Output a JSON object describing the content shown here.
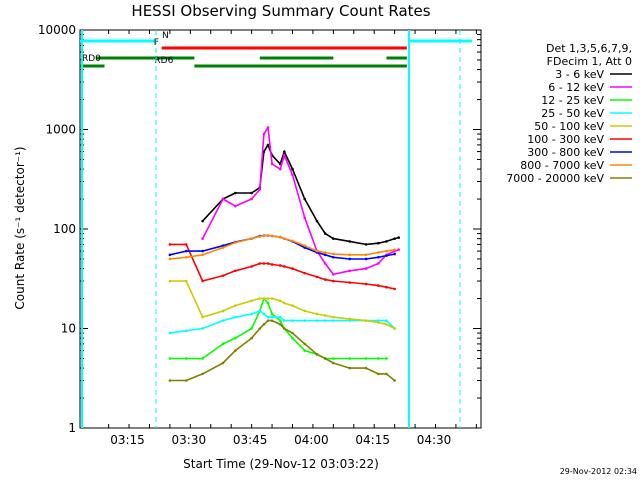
{
  "chart_data": {
    "type": "line",
    "title": "HESSI Observing Summary Count Rates",
    "xlabel": "Start Time (29-Nov-12 03:03:22)",
    "ylabel": "Count Rate (s⁻¹ detector⁻¹)",
    "y_scale": "log",
    "ylim": [
      1,
      10000
    ],
    "xlim": [
      "03:03:22",
      "04:41:30"
    ],
    "x_ticks": [
      "03:15",
      "03:30",
      "03:45",
      "04:00",
      "04:15",
      "04:30"
    ],
    "y_ticks": [
      "1",
      "10",
      "100",
      "1000",
      "10000"
    ],
    "grid": false,
    "legend_position": "right",
    "legend_header": [
      "Det 1,3,5,6,7,9,",
      "FDecim 1, Att 0"
    ],
    "timestamp": "29-Nov-2012 02:34",
    "x_minutes": [
      13,
      18.6,
      22,
      26,
      30,
      35,
      38,
      42,
      44,
      45,
      46,
      47,
      49,
      50,
      52,
      55,
      58,
      60,
      62,
      66,
      70,
      73,
      75,
      77,
      78,
      80,
      82,
      84,
      86,
      89
    ],
    "series": [
      {
        "name": "3 - 6 keV",
        "color": "#000000",
        "values": [
          null,
          null,
          null,
          null,
          120,
          200,
          230,
          230,
          260,
          600,
          700,
          550,
          450,
          600,
          400,
          200,
          120,
          90,
          80,
          75,
          70,
          72,
          75,
          80,
          82,
          null,
          null,
          null,
          null,
          null
        ]
      },
      {
        "name": "6 - 12 keV",
        "color": "#ff00ff",
        "values": [
          null,
          null,
          null,
          null,
          80,
          200,
          170,
          200,
          250,
          900,
          1050,
          450,
          400,
          550,
          350,
          130,
          60,
          45,
          35,
          38,
          40,
          45,
          55,
          60,
          62,
          null,
          null,
          null,
          null,
          null
        ]
      },
      {
        "name": "12 - 25 keV",
        "color": "#00ff00",
        "values": [
          null,
          null,
          5,
          5,
          5,
          7,
          8,
          10,
          15,
          20,
          18,
          14,
          12,
          10,
          8,
          6,
          5.5,
          5,
          5,
          5,
          5,
          5,
          5,
          null,
          null,
          null,
          null,
          null,
          null,
          null
        ]
      },
      {
        "name": "25 - 50 keV",
        "color": "#00ffff",
        "values": [
          null,
          null,
          9,
          9.5,
          10,
          12,
          13,
          14,
          15,
          14,
          13,
          13,
          13,
          12,
          12,
          12,
          12,
          12,
          12,
          12,
          12,
          12,
          12,
          10,
          null,
          null,
          null,
          null,
          null,
          null
        ]
      },
      {
        "name": "50 - 100 keV",
        "color": "#cccc00",
        "values": [
          null,
          null,
          30,
          30,
          13,
          15,
          17,
          19,
          20,
          20,
          20,
          20,
          19,
          18,
          17,
          15,
          14,
          13.5,
          13,
          12.5,
          12,
          11.5,
          11,
          10,
          null,
          null,
          null,
          null,
          null,
          null
        ]
      },
      {
        "name": "100 - 300 keV",
        "color": "#ff0000",
        "values": [
          null,
          null,
          70,
          70,
          30,
          34,
          38,
          42,
          45,
          45,
          45,
          44,
          43,
          42,
          40,
          36,
          33,
          31,
          30,
          29,
          28,
          27,
          26,
          25,
          null,
          null,
          null,
          null,
          null,
          null
        ]
      },
      {
        "name": "300 - 800 keV",
        "color": "#0000ff",
        "values": [
          null,
          null,
          55,
          60,
          60,
          68,
          74,
          80,
          85,
          86,
          86,
          85,
          83,
          80,
          75,
          65,
          58,
          55,
          52,
          50,
          50,
          52,
          54,
          56,
          null,
          null,
          null,
          null,
          null,
          null
        ]
      },
      {
        "name": "800 - 7000 keV",
        "color": "#ff8800",
        "values": [
          null,
          null,
          50,
          52,
          55,
          65,
          73,
          80,
          84,
          86,
          86,
          85,
          83,
          80,
          76,
          68,
          60,
          58,
          56,
          55,
          55,
          58,
          60,
          62,
          null,
          null,
          null,
          null,
          null,
          null
        ]
      },
      {
        "name": "7000 - 20000 keV",
        "color": "#808000",
        "values": [
          null,
          null,
          3,
          3,
          3.5,
          4.5,
          6,
          8,
          10,
          11,
          12,
          12,
          11,
          10,
          9,
          7,
          5.5,
          5,
          4.5,
          4,
          4,
          3.5,
          3.5,
          3,
          null,
          null,
          null,
          null,
          null,
          null
        ]
      }
    ],
    "bars": [
      {
        "label": "N",
        "color": "#00ffff",
        "spans": [
          [
            0,
            18.6
          ],
          [
            80.5,
            96
          ]
        ]
      },
      {
        "label": "F",
        "color": "#ff0000",
        "spans": [
          [
            20,
            80
          ]
        ]
      },
      {
        "label": "RD0",
        "color": "#008000",
        "spans": [
          [
            4,
            28
          ],
          [
            44,
            62
          ],
          [
            75,
            80
          ]
        ]
      },
      {
        "label": "RD6",
        "color": "#008000",
        "spans": [
          [
            0,
            6
          ],
          [
            28,
            80
          ]
        ]
      }
    ],
    "vlines": [
      18.6,
      80.5,
      93
    ]
  }
}
